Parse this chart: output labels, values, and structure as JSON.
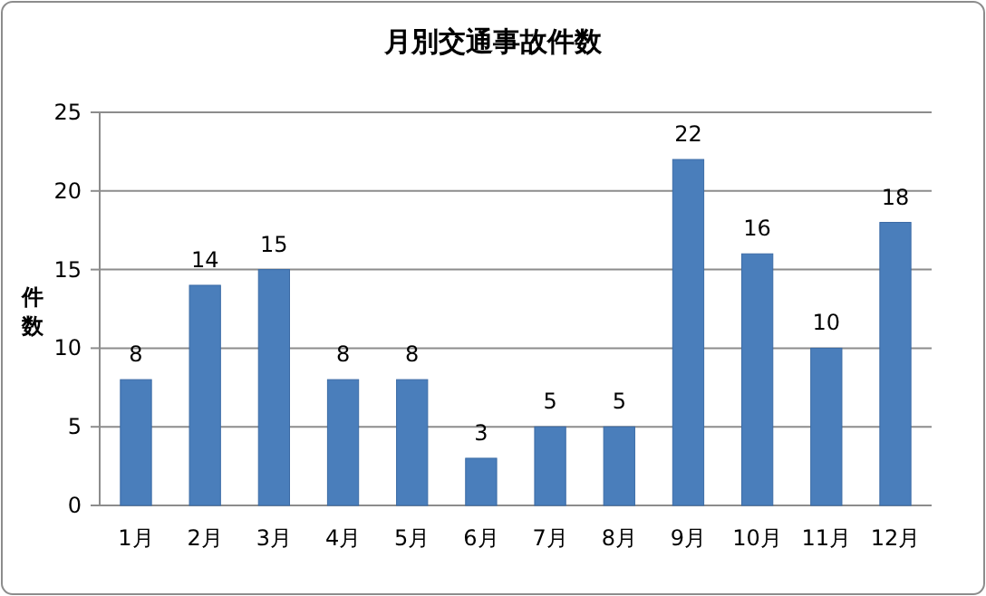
{
  "chart_data": {
    "type": "bar",
    "title": "月別交通事故件数",
    "ylabel": "件数",
    "categories": [
      "1月",
      "2月",
      "3月",
      "4月",
      "5月",
      "6月",
      "7月",
      "8月",
      "9月",
      "10月",
      "11月",
      "12月"
    ],
    "values": [
      8,
      14,
      15,
      8,
      8,
      3,
      5,
      5,
      22,
      16,
      10,
      18
    ],
    "color": "#4a7ebb",
    "ylim": [
      0,
      25
    ],
    "yticks": [
      0,
      5,
      10,
      15,
      20,
      25
    ],
    "grid": "y",
    "data_labels": true
  }
}
